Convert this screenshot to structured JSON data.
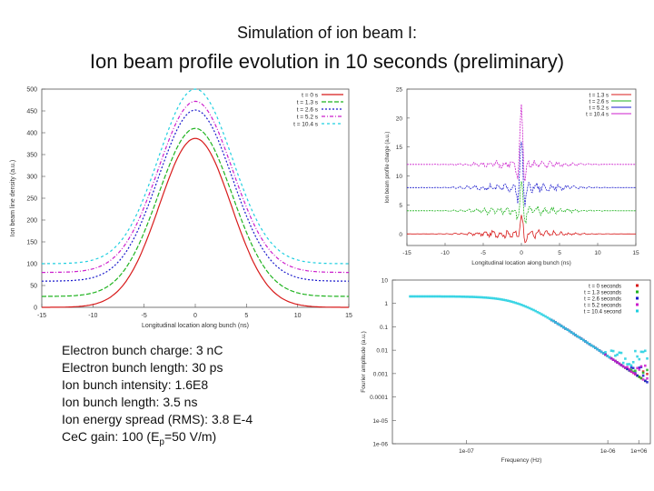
{
  "header": {
    "subtitle": "Simulation of ion beam I:",
    "title": "Ion beam profile evolution in 10 seconds (preliminary)"
  },
  "params": [
    {
      "label": "Electron bunch charge:",
      "value": "3 nC"
    },
    {
      "label": "Electron bunch length:",
      "value": "30 ps"
    },
    {
      "label": "Ion bunch intensity:",
      "value": "1.6E8"
    },
    {
      "label": "Ion bunch length:",
      "value": "3.5 ns"
    },
    {
      "label": "Ion energy spread (RMS):",
      "value": "3.8 E-4"
    }
  ],
  "gain": {
    "label": "CeC gain:",
    "value": "100",
    "paren_open": "(E",
    "subscript": "p",
    "paren_close": "=50 V/m)"
  },
  "chart_data": [
    {
      "id": "density",
      "type": "line",
      "xlabel": "Longitudinal location along bunch (ns)",
      "ylabel": "Ion beam line density (a.u.)",
      "xlim": [
        -15,
        15
      ],
      "ylim": [
        0,
        500
      ],
      "xticks": [
        "-15",
        "-10",
        "-5",
        "0",
        "5",
        "10",
        "15"
      ],
      "yticks": [
        "0",
        "50",
        "100",
        "150",
        "200",
        "250",
        "300",
        "350",
        "400",
        "450",
        "500"
      ],
      "legend_position": "top-right",
      "series": [
        {
          "name": "t = 0 s",
          "color": "#d81b1b",
          "baseline": 0,
          "peak": 387,
          "sigma": 3.5
        },
        {
          "name": "t = 1.3 s",
          "color": "#1fb31f",
          "baseline": 25,
          "peak": 410,
          "sigma": 3.6
        },
        {
          "name": "t = 2.6 s",
          "color": "#1a1acc",
          "baseline": 60,
          "peak": 452,
          "sigma": 3.6
        },
        {
          "name": "t = 5.2 s",
          "color": "#cc1fcc",
          "baseline": 80,
          "peak": 472,
          "sigma": 3.6
        },
        {
          "name": "t = 10.4 s",
          "color": "#1fcfe0",
          "baseline": 100,
          "peak": 500,
          "sigma": 3.6
        }
      ]
    },
    {
      "id": "charge",
      "type": "line",
      "xlabel": "Longitudinal location along bunch (ns)",
      "ylabel": "Ion beam profile charge (a.u.)",
      "xlim": [
        -15,
        15
      ],
      "ylim": [
        -2,
        25
      ],
      "xticks": [
        "-15",
        "-10",
        "-5",
        "0",
        "5",
        "10",
        "15"
      ],
      "yticks": [
        "0",
        "5",
        "10",
        "15",
        "20",
        "25"
      ],
      "legend_position": "top-right",
      "series": [
        {
          "name": "t = 1.3 s",
          "color": "#d81b1b",
          "offset": 0,
          "amp": 0.6,
          "spike": 3.5
        },
        {
          "name": "t = 2.6 s",
          "color": "#1fb31f",
          "offset": 4,
          "amp": 0.7,
          "spike": 5
        },
        {
          "name": "t = 5.2 s",
          "color": "#1a1acc",
          "offset": 8,
          "amp": 0.7,
          "spike": 8
        },
        {
          "name": "t = 10.4 s",
          "color": "#cc1fcc",
          "offset": 12,
          "amp": 0.6,
          "spike": 10
        }
      ]
    },
    {
      "id": "spectrum",
      "type": "scatter",
      "xlabel": "Frequency (Hz)",
      "ylabel": "Fourier amplitude (a.u.)",
      "xscale": "log",
      "yscale": "log",
      "xlim": [
        3e-08,
        2e-06
      ],
      "ylim": [
        1e-06,
        10
      ],
      "xticks": [
        "1e-07",
        "1e-06",
        "1e+06"
      ],
      "yticks": [
        "10",
        "1",
        "0.1",
        "0.01",
        "0.001",
        "0.0001",
        "1e-05",
        "1e-06"
      ],
      "legend_position": "top-right",
      "series": [
        {
          "name": "t = 0 seconds",
          "color": "#d81b1b"
        },
        {
          "name": "t = 1.3 seconds",
          "color": "#1fb31f"
        },
        {
          "name": "t = 2.6 seconds",
          "color": "#1a1acc"
        },
        {
          "name": "t = 5.2 seconds",
          "color": "#cc1fcc"
        },
        {
          "name": "t = 10.4 second",
          "color": "#1fcfe0"
        }
      ]
    }
  ]
}
